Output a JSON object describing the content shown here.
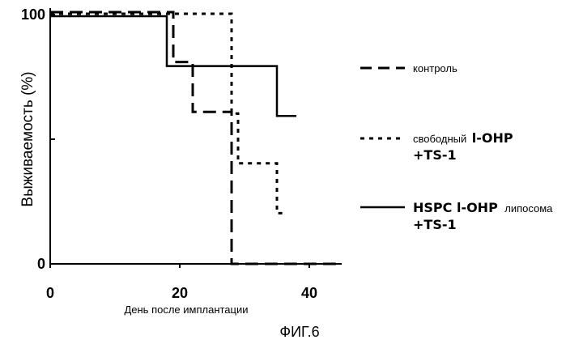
{
  "chart_data": {
    "type": "line",
    "step": true,
    "title": "",
    "xlabel": "День после имплантации",
    "ylabel": "Выживаемость (%)",
    "xlim": [
      0,
      45
    ],
    "ylim": [
      0,
      100
    ],
    "x_ticks": [
      "0",
      "20",
      "40"
    ],
    "y_ticks": [
      "0",
      "100"
    ],
    "grid": false,
    "legend_position": "right",
    "series": [
      {
        "name": "контроль",
        "style": "dashed",
        "x": [
          0,
          19,
          19,
          22,
          22,
          28,
          28,
          45
        ],
        "y": [
          100,
          100,
          80,
          80,
          60,
          60,
          0,
          0
        ]
      },
      {
        "name_parts": [
          "свободный",
          "l-OHP",
          "+TS-1"
        ],
        "style": "dotted",
        "x": [
          0,
          28,
          28,
          29,
          29,
          35,
          35,
          36
        ],
        "y": [
          100,
          100,
          60,
          60,
          40,
          40,
          20,
          20
        ]
      },
      {
        "name_parts": [
          "HSPC l-OHP",
          "липосома",
          "+TS-1"
        ],
        "style": "solid",
        "x": [
          0,
          18,
          18,
          35,
          35,
          38
        ],
        "y": [
          100,
          100,
          80,
          80,
          60,
          60
        ]
      }
    ]
  },
  "figure_caption": "ФИГ.6"
}
